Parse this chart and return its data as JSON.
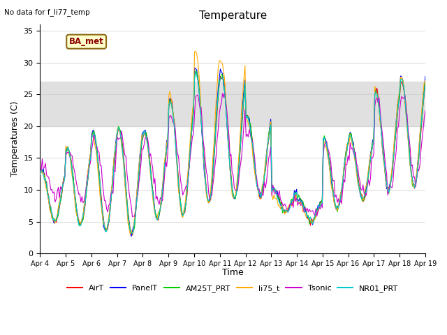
{
  "title": "Temperature",
  "ylabel": "Temperatures (C)",
  "xlabel": "Time",
  "top_left_text": "No data for f_li77_temp",
  "ba_met_label": "BA_met",
  "ylim": [
    0,
    36
  ],
  "yticks": [
    0,
    5,
    10,
    15,
    20,
    25,
    30,
    35
  ],
  "xticklabels": [
    "Apr 4",
    "Apr 5",
    "Apr 6",
    "Apr 7",
    "Apr 8",
    "Apr 9",
    "Apr 10",
    "Apr 11",
    "Apr 12",
    "Apr 13",
    "Apr 14",
    "Apr 15",
    "Apr 16",
    "Apr 17",
    "Apr 18",
    "Apr 19"
  ],
  "hspan_low": 20,
  "hspan_high": 27,
  "series_colors": {
    "AirT": "#ff0000",
    "PanelT": "#0000ff",
    "AM25T_PRT": "#00cc00",
    "li75_t": "#ffaa00",
    "Tsonic": "#cc00cc",
    "NR01_PRT": "#00cccc"
  },
  "legend_order": [
    "AirT",
    "PanelT",
    "AM25T_PRT",
    "li75_t",
    "Tsonic",
    "NR01_PRT"
  ],
  "figsize": [
    6.4,
    4.8
  ],
  "dpi": 100
}
